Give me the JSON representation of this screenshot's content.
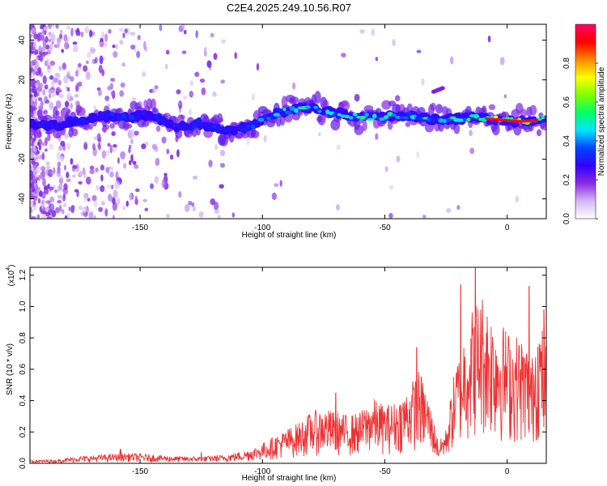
{
  "figure_title": "C2E4.2025.249.10.56.R07",
  "chart_data": [
    {
      "type": "heatmap",
      "title": "C2E4.2025.249.10.56.R07",
      "xlabel": "Height of straight line (km)",
      "ylabel": "Frequency (Hz)",
      "xlim": [
        -195,
        16
      ],
      "ylim": [
        -50,
        48
      ],
      "xticks": [
        -150,
        -100,
        -50,
        0
      ],
      "xtick_labels": [
        "-150",
        "-100",
        "-50",
        "0"
      ],
      "yticks": [
        -40,
        -20,
        0,
        20,
        40
      ],
      "ytick_labels": [
        "-40",
        "-20",
        "0",
        "20",
        "40"
      ],
      "colorbar": {
        "label": "Normalized spectral amplitude",
        "range": [
          0,
          1
        ],
        "ticks": [
          0.0,
          0.2,
          0.4,
          0.6,
          0.8
        ],
        "tick_labels": [
          "0.0",
          "0.2",
          "0.4",
          "0.6",
          "0.8"
        ],
        "colormap": [
          "#ffffff",
          "#d4b8f5",
          "#8a2be2",
          "#3300ff",
          "#0044ff",
          "#00e5ff",
          "#00ff66",
          "#7fff00",
          "#ffff00",
          "#ff8800",
          "#ff0000",
          "#ff0066"
        ]
      },
      "ridge": {
        "description_free": true,
        "x": [
          -195,
          -185,
          -175,
          -165,
          -155,
          -145,
          -135,
          -125,
          -115,
          -105,
          -95,
          -85,
          -75,
          -65,
          -55,
          -45,
          -35,
          -25,
          -15,
          -5,
          5,
          16
        ],
        "frequency": [
          -2,
          -3,
          -1,
          2,
          1,
          2,
          -4,
          -2,
          -6,
          -4,
          3,
          6,
          5,
          2,
          1,
          2,
          1,
          0,
          1,
          0,
          -1,
          0
        ],
        "amplitude": [
          0.2,
          0.2,
          0.25,
          0.3,
          0.35,
          0.3,
          0.3,
          0.3,
          0.3,
          0.35,
          0.45,
          0.5,
          0.45,
          0.55,
          0.55,
          0.5,
          0.5,
          0.55,
          0.6,
          0.8,
          0.9,
          0.7
        ]
      },
      "secondary_feature": {
        "x": [
          -30,
          -26
        ],
        "frequency": [
          14,
          16
        ]
      }
    },
    {
      "type": "line",
      "title": "",
      "xlabel": "Height of straight line (km)",
      "ylabel": "SNR (10 * v/v)",
      "y_multiplier_label": "(x10",
      "y_multiplier_exp": "4",
      "xlim": [
        -195,
        16
      ],
      "ylim": [
        0,
        1.25
      ],
      "xticks": [
        -150,
        -100,
        -50,
        0
      ],
      "xtick_labels": [
        "-150",
        "-100",
        "-50",
        "0"
      ],
      "yticks": [
        0.0,
        0.2,
        0.4,
        0.6,
        0.8,
        1.0,
        1.2
      ],
      "ytick_labels": [
        "0.0",
        "0.2",
        "0.4",
        "0.6",
        "0.8",
        "1.0",
        "1.2"
      ],
      "color": "#ee3333",
      "series": [
        {
          "name": "SNR",
          "x": [
            -195,
            -185,
            -175,
            -165,
            -155,
            -145,
            -135,
            -125,
            -115,
            -108,
            -102,
            -95,
            -90,
            -85,
            -80,
            -75,
            -70,
            -65,
            -60,
            -55,
            -50,
            -45,
            -40,
            -36,
            -32,
            -28,
            -25,
            -22,
            -19,
            -16,
            -13,
            -10,
            -7,
            -4,
            -1,
            2,
            5,
            8,
            10,
            12,
            14,
            16
          ],
          "envelope": [
            0.02,
            0.02,
            0.04,
            0.05,
            0.06,
            0.05,
            0.04,
            0.04,
            0.05,
            0.07,
            0.1,
            0.16,
            0.2,
            0.24,
            0.3,
            0.32,
            0.3,
            0.28,
            0.3,
            0.38,
            0.34,
            0.36,
            0.45,
            0.55,
            0.38,
            0.12,
            0.2,
            0.5,
            0.7,
            0.85,
            0.95,
            1.0,
            0.9,
            0.85,
            0.8,
            0.75,
            0.75,
            0.7,
            0.6,
            0.85,
            0.8,
            0.75
          ],
          "peaks": [
            {
              "x": -125,
              "y": 0.07
            },
            {
              "x": -158,
              "y": 0.09
            },
            {
              "x": -70,
              "y": 0.45
            },
            {
              "x": -37,
              "y": 0.74
            },
            {
              "x": -19,
              "y": 1.14
            },
            {
              "x": -13,
              "y": 1.25
            },
            {
              "x": 9,
              "y": 1.13
            },
            {
              "x": 15,
              "y": 0.98
            }
          ]
        }
      ]
    }
  ]
}
